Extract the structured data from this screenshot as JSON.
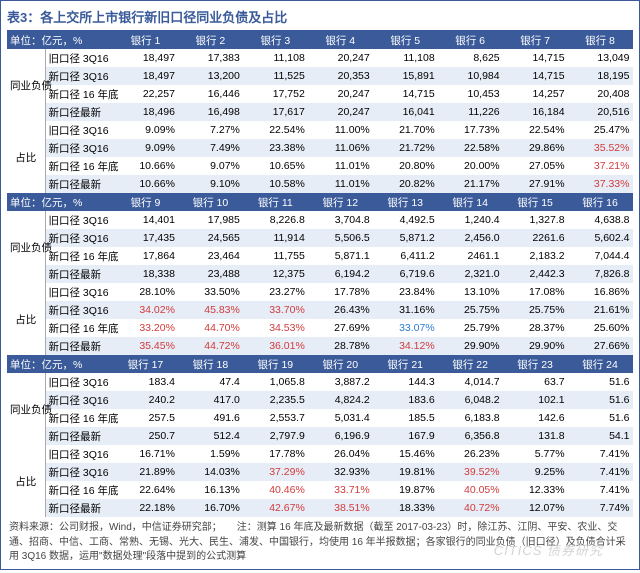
{
  "title": "表3：各上交所上市银行新旧口径同业负债及占比",
  "unit": "单位：亿元，%",
  "footer": "资料来源：公司财报，Wind，中信证券研究部；　　注：测算 16 年底及最新数据（截至 2017-03-23）时，除江苏、江阴、平安、农业、交通、招商、中信、工商、常熟、无锡、光大、民生、浦发、中国银行，均使用 16 年半报数据；各家银行的同业负债（旧口径）及负债合计采用 3Q16 数据，运用\"数据处理\"段落中提到的公式测算",
  "watermark": "CITICS 债券研究",
  "secLabels": {
    "a": "同业负债",
    "b": "占比"
  },
  "rowNames": [
    "旧口径 3Q16",
    "新口径 3Q16",
    "新口径 16 年底",
    "新口径最新"
  ],
  "blocks": [
    {
      "hdr": [
        "银行 1",
        "银行 2",
        "银行 3",
        "银行 4",
        "银行 5",
        "银行 6",
        "银行 7",
        "银行 8"
      ],
      "a": [
        [
          "18,497",
          "17,383",
          "11,108",
          "20,247",
          "11,108",
          "8,625",
          "14,715",
          "13,049"
        ],
        [
          "18,497",
          "13,200",
          "11,525",
          "20,353",
          "15,891",
          "10,984",
          "14,715",
          "18,195"
        ],
        [
          "22,257",
          "16,446",
          "17,752",
          "20,247",
          "14,715",
          "10,453",
          "14,257",
          "20,408"
        ],
        [
          "18,496",
          "16,498",
          "17,617",
          "20,247",
          "16,041",
          "11,226",
          "16,184",
          "20,516"
        ]
      ],
      "b": [
        [
          "9.09%",
          "7.27%",
          "22.54%",
          "11.00%",
          "21.70%",
          "17.73%",
          "22.54%",
          "25.47%"
        ],
        [
          "9.09%",
          "7.49%",
          "23.38%",
          "11.06%",
          "21.72%",
          "22.58%",
          "29.86%",
          "35.52%"
        ],
        [
          "10.66%",
          "9.07%",
          "10.65%",
          "11.01%",
          "20.80%",
          "20.00%",
          "27.05%",
          "37.21%"
        ],
        [
          "10.66%",
          "9.10%",
          "10.58%",
          "11.01%",
          "20.82%",
          "21.17%",
          "27.91%",
          "37.33%"
        ]
      ],
      "red": {
        "b": [
          [],
          [
            7
          ],
          [
            7
          ],
          [
            7
          ]
        ]
      }
    },
    {
      "hdr": [
        "银行 9",
        "银行 10",
        "银行 11",
        "银行 12",
        "银行 13",
        "银行 14",
        "银行 15",
        "银行 16"
      ],
      "a": [
        [
          "14,401",
          "17,985",
          "8,226.8",
          "3,704.8",
          "4,492.5",
          "1,240.4",
          "1,327.8",
          "4,638.8"
        ],
        [
          "17,435",
          "24,565",
          "11,914",
          "5,506.5",
          "5,871.2",
          "2,456.0",
          "2261.6",
          "5,602.4"
        ],
        [
          "17,864",
          "23,464",
          "11,755",
          "5,871.1",
          "6,411.2",
          "2461.1",
          "2,183.2",
          "7,044.4"
        ],
        [
          "18,338",
          "23,488",
          "12,375",
          "6,194.2",
          "6,719.6",
          "2,321.0",
          "2,442.3",
          "7,826.8"
        ]
      ],
      "b": [
        [
          "28.10%",
          "33.50%",
          "23.27%",
          "17.78%",
          "23.84%",
          "13.10%",
          "17.08%",
          "16.86%"
        ],
        [
          "34.02%",
          "45.83%",
          "33.70%",
          "26.43%",
          "31.16%",
          "25.75%",
          "25.75%",
          "21.61%"
        ],
        [
          "33.20%",
          "44.70%",
          "34.53%",
          "27.69%",
          "33.07%",
          "25.79%",
          "28.37%",
          "25.60%"
        ],
        [
          "35.45%",
          "44.72%",
          "36.01%",
          "28.78%",
          "34.12%",
          "29.90%",
          "29.90%",
          "27.66%"
        ]
      ],
      "red": {
        "b": [
          [],
          [
            0,
            1,
            2
          ],
          [
            0,
            1,
            2
          ],
          [
            0,
            1,
            2,
            4
          ]
        ]
      },
      "blue": {
        "b": [
          [],
          [],
          [
            4
          ],
          []
        ]
      }
    },
    {
      "hdr": [
        "银行 17",
        "银行 18",
        "银行 19",
        "银行 20",
        "银行 21",
        "银行 22",
        "银行 23",
        "银行 24"
      ],
      "a": [
        [
          "183.4",
          "47.4",
          "1,065.8",
          "3,887.2",
          "144.3",
          "4,014.7",
          "63.7",
          "51.6"
        ],
        [
          "240.2",
          "417.0",
          "2,235.5",
          "4,824.2",
          "183.6",
          "6,048.2",
          "102.1",
          "51.6"
        ],
        [
          "257.5",
          "491.6",
          "2,553.7",
          "5,031.4",
          "185.5",
          "6,183.8",
          "142.6",
          "51.6"
        ],
        [
          "250.7",
          "512.4",
          "2,797.9",
          "6,196.9",
          "167.9",
          "6,356.8",
          "131.8",
          "54.1"
        ]
      ],
      "b": [
        [
          "16.71%",
          "1.59%",
          "17.78%",
          "26.04%",
          "15.46%",
          "26.23%",
          "5.77%",
          "7.41%"
        ],
        [
          "21.89%",
          "14.03%",
          "37.29%",
          "32.93%",
          "19.81%",
          "39.52%",
          "9.25%",
          "7.41%"
        ],
        [
          "22.64%",
          "16.13%",
          "40.46%",
          "33.71%",
          "19.87%",
          "40.05%",
          "12.33%",
          "7.41%"
        ],
        [
          "22.18%",
          "16.70%",
          "42.67%",
          "38.51%",
          "18.33%",
          "40.72%",
          "12.07%",
          "7.74%"
        ]
      ],
      "red": {
        "b": [
          [],
          [
            2,
            5
          ],
          [
            2,
            3,
            5
          ],
          [
            2,
            3,
            5
          ]
        ]
      }
    }
  ]
}
